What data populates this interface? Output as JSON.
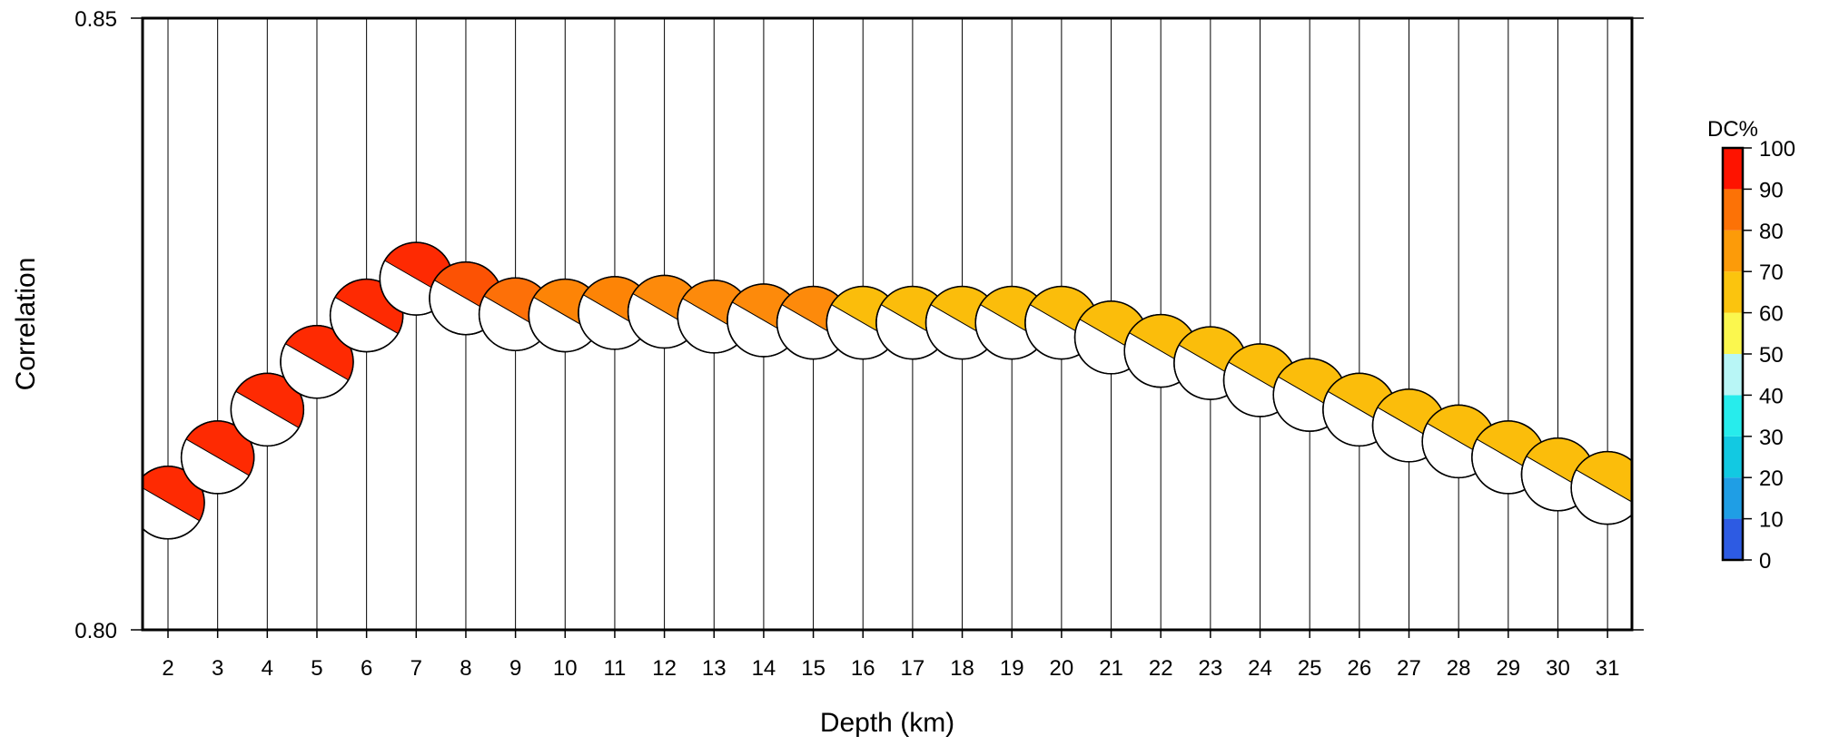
{
  "chart_data": {
    "type": "scatter",
    "xlabel": "Depth (km)",
    "ylabel": "Correlation",
    "x_categories": [
      2,
      3,
      4,
      5,
      6,
      7,
      8,
      9,
      10,
      11,
      12,
      13,
      14,
      15,
      16,
      17,
      18,
      19,
      20,
      21,
      22,
      23,
      24,
      25,
      26,
      27,
      28,
      29,
      30,
      31
    ],
    "ylim": [
      0.8,
      0.85
    ],
    "yticks": [
      "0.80",
      "0.85"
    ],
    "grid": "vertical",
    "marker": "focal-mechanism beachball",
    "points": [
      {
        "depth": 2,
        "correlation": 0.8104,
        "dc": 97
      },
      {
        "depth": 3,
        "correlation": 0.8141,
        "dc": 97
      },
      {
        "depth": 4,
        "correlation": 0.818,
        "dc": 97
      },
      {
        "depth": 5,
        "correlation": 0.8219,
        "dc": 97
      },
      {
        "depth": 6,
        "correlation": 0.8257,
        "dc": 95
      },
      {
        "depth": 7,
        "correlation": 0.8287,
        "dc": 93
      },
      {
        "depth": 8,
        "correlation": 0.8271,
        "dc": 88
      },
      {
        "depth": 9,
        "correlation": 0.8258,
        "dc": 84
      },
      {
        "depth": 10,
        "correlation": 0.8257,
        "dc": 83
      },
      {
        "depth": 11,
        "correlation": 0.8259,
        "dc": 80
      },
      {
        "depth": 12,
        "correlation": 0.826,
        "dc": 78
      },
      {
        "depth": 13,
        "correlation": 0.8256,
        "dc": 77
      },
      {
        "depth": 14,
        "correlation": 0.8253,
        "dc": 76
      },
      {
        "depth": 15,
        "correlation": 0.8251,
        "dc": 76
      },
      {
        "depth": 16,
        "correlation": 0.8251,
        "dc": 67
      },
      {
        "depth": 17,
        "correlation": 0.8251,
        "dc": 67
      },
      {
        "depth": 18,
        "correlation": 0.8251,
        "dc": 67
      },
      {
        "depth": 19,
        "correlation": 0.8251,
        "dc": 67
      },
      {
        "depth": 20,
        "correlation": 0.8251,
        "dc": 67
      },
      {
        "depth": 21,
        "correlation": 0.8239,
        "dc": 67
      },
      {
        "depth": 22,
        "correlation": 0.8228,
        "dc": 67
      },
      {
        "depth": 23,
        "correlation": 0.8218,
        "dc": 67
      },
      {
        "depth": 24,
        "correlation": 0.8204,
        "dc": 67
      },
      {
        "depth": 25,
        "correlation": 0.8192,
        "dc": 67
      },
      {
        "depth": 26,
        "correlation": 0.818,
        "dc": 67
      },
      {
        "depth": 27,
        "correlation": 0.8167,
        "dc": 67
      },
      {
        "depth": 28,
        "correlation": 0.8154,
        "dc": 67
      },
      {
        "depth": 29,
        "correlation": 0.8141,
        "dc": 67
      },
      {
        "depth": 30,
        "correlation": 0.8127,
        "dc": 67
      },
      {
        "depth": 31,
        "correlation": 0.8116,
        "dc": 67
      }
    ],
    "colorbar": {
      "title": "DC%",
      "range": [
        0,
        100
      ],
      "ticks": [
        "0",
        "10",
        "20",
        "30",
        "40",
        "50",
        "60",
        "70",
        "80",
        "90",
        "100"
      ],
      "colors": [
        "#2d5be3",
        "#1f9ee5",
        "#12c9e2",
        "#27ecec",
        "#b8f6f6",
        "#fbf74e",
        "#fbc40e",
        "#fc9b09",
        "#fc7206",
        "#fe1300"
      ]
    },
    "dc_color_stops": [
      {
        "dc": 60,
        "color": "#fbbd0b"
      },
      {
        "dc": 76,
        "color": "#fd8a0b"
      },
      {
        "dc": 80,
        "color": "#fd8406"
      },
      {
        "dc": 84,
        "color": "#fd7008"
      },
      {
        "dc": 88,
        "color": "#fc5204"
      },
      {
        "dc": 93,
        "color": "#fe2a02"
      },
      {
        "dc": 100,
        "color": "#fe0a00"
      }
    ]
  }
}
